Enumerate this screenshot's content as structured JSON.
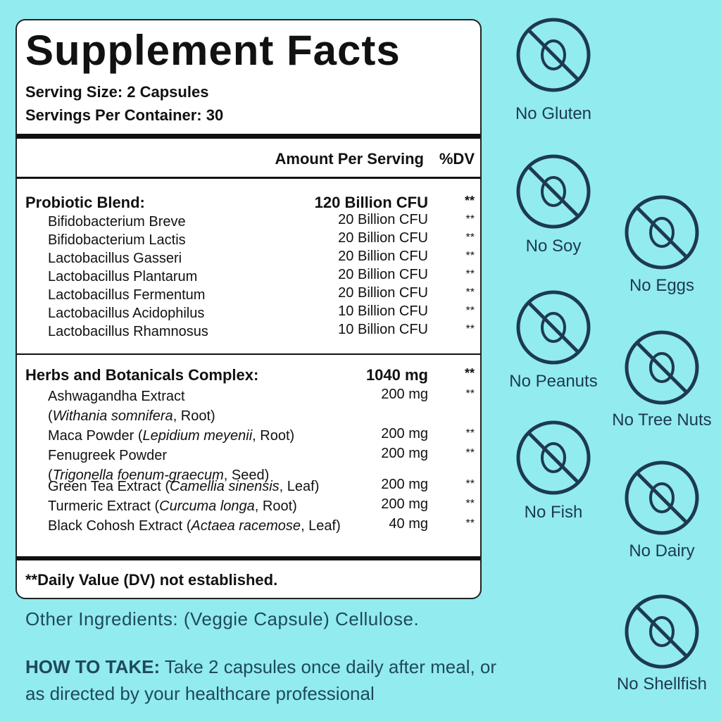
{
  "title": "Supplement Facts",
  "serving_size": "Serving Size: 2 Capsules",
  "servings_per_container": "Servings Per Container: 30",
  "column_header": {
    "amount": "Amount Per Serving",
    "dv": "%DV"
  },
  "sections": [
    {
      "name": "Probiotic Blend:",
      "amount": "120 Billion CFU",
      "dv": "**",
      "items": [
        {
          "parts": [
            "Bifidobacterium Breve"
          ],
          "amount": "20 Billion CFU",
          "dv": "**"
        },
        {
          "parts": [
            "Bifidobacterium Lactis"
          ],
          "amount": "20 Billion CFU",
          "dv": "**"
        },
        {
          "parts": [
            "Lactobacillus Gasseri"
          ],
          "amount": "20 Billion CFU",
          "dv": "**"
        },
        {
          "parts": [
            "Lactobacillus Plantarum"
          ],
          "amount": "20 Billion CFU",
          "dv": "**"
        },
        {
          "parts": [
            "Lactobacillus Fermentum"
          ],
          "amount": "20 Billion CFU",
          "dv": "**"
        },
        {
          "parts": [
            "Lactobacillus Acidophilus"
          ],
          "amount": "10 Billion CFU",
          "dv": "**"
        },
        {
          "parts": [
            "Lactobacillus Rhamnosus"
          ],
          "amount": "10 Billion CFU",
          "dv": "**"
        }
      ]
    },
    {
      "name": "Herbs and Botanicals Complex:",
      "amount": "1040 mg",
      "dv": "**",
      "items": [
        {
          "parts": [
            "Ashwagandha Extract\n(",
            "Withania somnifera",
            ", Root)"
          ],
          "amount": "200 mg",
          "dv": "**"
        },
        {
          "parts": [
            "Maca Powder (",
            "Lepidium meyenii",
            ", Root)"
          ],
          "amount": "200 mg",
          "dv": "**"
        },
        {
          "parts": [
            "Fenugreek Powder\n(",
            "Trigonella foenum-graecum",
            ", Seed)"
          ],
          "amount": "200 mg",
          "dv": "**"
        },
        {
          "parts": [
            "Green Tea Extract (",
            "Camellia sinensis",
            ", Leaf)"
          ],
          "amount": "200 mg",
          "dv": "**"
        },
        {
          "parts": [
            "Turmeric Extract (",
            "Curcuma longa",
            ", Root)"
          ],
          "amount": "200 mg",
          "dv": "**"
        },
        {
          "parts": [
            "Black Cohosh Extract (",
            "Actaea racemose",
            ", Leaf)"
          ],
          "amount": "40 mg",
          "dv": "**"
        }
      ]
    }
  ],
  "footnote": "**Daily Value (DV) not established.",
  "other_ingredients": "Other Ingredients: (Veggie Capsule) Cellulose.",
  "how_to_take": {
    "label": "HOW TO TAKE:",
    "text": " Take 2 capsules once daily after meal, or as directed by your healthcare professional"
  },
  "badges": [
    "No Gluten",
    "No Soy",
    "No Eggs",
    "No Peanuts",
    "No Tree Nuts",
    "No Fish",
    "No Dairy",
    "No Shellfish"
  ]
}
